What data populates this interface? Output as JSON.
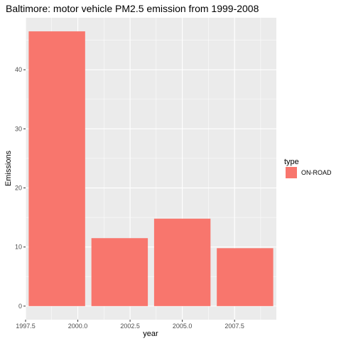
{
  "chart_data": {
    "type": "bar",
    "title": "Baltimore: motor vehicle PM2.5 emission from 1999-2008",
    "xlabel": "year",
    "ylabel": "Emissions",
    "x": [
      1999,
      2002,
      2005,
      2008
    ],
    "series": [
      {
        "name": "ON-ROAD",
        "values": [
          46.5,
          11.5,
          14.8,
          9.8
        ]
      }
    ],
    "xlim": [
      1997.5,
      2009.5
    ],
    "ylim": [
      -2.3,
      48.8
    ],
    "x_ticks": [
      1997.5,
      2000.0,
      2002.5,
      2005.0,
      2007.5
    ],
    "x_tick_labels": [
      "1997.5",
      "2000.0",
      "2002.5",
      "2005.0",
      "2007.5"
    ],
    "y_ticks": [
      0,
      10,
      20,
      30,
      40
    ],
    "y_tick_labels": [
      "0",
      "10",
      "20",
      "30",
      "40"
    ],
    "bar_width_years": 2.7,
    "legend": {
      "title": "type",
      "placement": "right"
    },
    "grid": true,
    "colors": {
      "bar": "#F8766D",
      "panel": "#EBEBEB",
      "grid": "#FFFFFF"
    }
  }
}
